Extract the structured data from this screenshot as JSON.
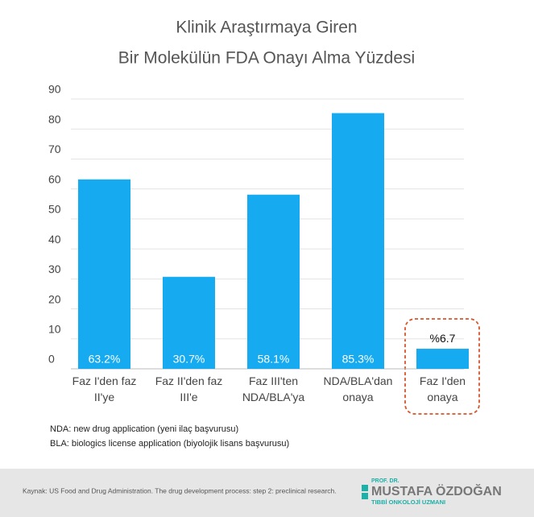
{
  "chart_data": {
    "type": "bar",
    "title_lines": [
      "Klinik Araştırmaya Giren",
      "Bir Molekülün FDA Onayı Alma Yüzdesi"
    ],
    "categories": [
      "Faz I'den faz\nII'ye",
      "Faz II'den faz\nIII'e",
      "Faz III'ten\nNDA/BLA'ya",
      "NDA/BLA'dan\nonaya",
      "Faz I'den\nonaya"
    ],
    "values": [
      63.2,
      30.7,
      58.1,
      85.3,
      6.7
    ],
    "value_labels": [
      "63.2%",
      "30.7%",
      "58.1%",
      "85.3%",
      "%6.7"
    ],
    "color": "#16aaf0",
    "ylim": [
      0,
      90
    ],
    "yticks": [
      0,
      10,
      20,
      30,
      40,
      50,
      60,
      70,
      80,
      90
    ],
    "grid": true,
    "notes": [
      "NDA: new drug application (yeni ilaç başvurusu)",
      "BLA: biologics license application (biyolojik lisans başvurusu)"
    ]
  },
  "footer": {
    "source": "Kaynak: US Food and Drug Administration. The drug development process: step 2: preclinical research.",
    "logo_top": "PROF. DR.",
    "logo_name": "MUSTAFA ÖZDOĞAN",
    "logo_sub": "TIBBİ ONKOLOJİ UZMANI"
  }
}
